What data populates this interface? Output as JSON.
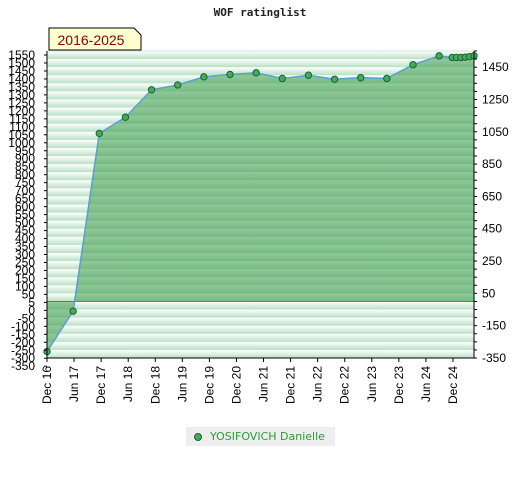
{
  "colors": {
    "line": "#5aa0d0",
    "marker_fill": "#3fae5a",
    "marker_stroke": "#1f5f2f",
    "area_fill": "#3a9a4a",
    "badge_bg": "#ffffd0",
    "badge_text": "#8a0000"
  },
  "chart_data": {
    "type": "area",
    "title": "WOF ratinglist",
    "period_badge": "2016-2025",
    "x_tick_labels": [
      "Dec 16",
      "Jun 17",
      "Dec 17",
      "Jun 18",
      "Dec 18",
      "Jun 19",
      "Dec 19",
      "Dec 20",
      "Jun 21",
      "Dec 21",
      "Jun 22",
      "Dec 22",
      "Jun 23",
      "Dec 23",
      "Jun 24",
      "Dec 24"
    ],
    "left_axis": {
      "ylim": [
        -350,
        1550
      ],
      "tick_labels": [
        "1550",
        "1500",
        "1450",
        "1400",
        "1350",
        "1300",
        "1250",
        "1200",
        "1150",
        "1100",
        "1050",
        "1000",
        "950",
        "900",
        "850",
        "800",
        "750",
        "700",
        "650",
        "600",
        "550",
        "500",
        "450",
        "400",
        "350",
        "300",
        "250",
        "200",
        "150",
        "100",
        "50",
        "5",
        "0",
        "-50",
        "-100",
        "-150",
        "-200",
        "-250",
        "-300",
        "-350"
      ]
    },
    "right_axis": {
      "ylim": [
        -350,
        1550
      ],
      "tick_labels": [
        "1450",
        "1250",
        "1050",
        "850",
        "650",
        "450",
        "250",
        "50",
        "-150",
        "-350"
      ]
    },
    "legend_position": "bottom",
    "series": [
      {
        "name": "YOSIFOVICH Danielle",
        "points": [
          {
            "x": "Dec 16",
            "y": -310
          },
          {
            "x": "Jun 17",
            "y": -60
          },
          {
            "x": "Dec 17",
            "y": 1040
          },
          {
            "x": "Jun 18",
            "y": 1140
          },
          {
            "x": "Dec 18",
            "y": 1310
          },
          {
            "x": "Jun 19",
            "y": 1340
          },
          {
            "x": "Dec 19",
            "y": 1390
          },
          {
            "x": "Jun 20",
            "y": 1405
          },
          {
            "x": "Dec 20",
            "y": 1415
          },
          {
            "x": "Jun 21",
            "y": 1380
          },
          {
            "x": "Dec 21",
            "y": 1400
          },
          {
            "x": "Jun 22",
            "y": 1375
          },
          {
            "x": "Dec 22",
            "y": 1385
          },
          {
            "x": "Jun 23",
            "y": 1380
          },
          {
            "x": "Dec 23",
            "y": 1465
          },
          {
            "x": "Jun 24",
            "y": 1520
          },
          {
            "x": "Sep 24",
            "y": 1510
          },
          {
            "x": "Oct 24",
            "y": 1510
          },
          {
            "x": "Nov 24",
            "y": 1510
          },
          {
            "x": "Dec 24",
            "y": 1512
          },
          {
            "x": "Jan 25",
            "y": 1515
          },
          {
            "x": "Feb 25",
            "y": 1520
          }
        ]
      }
    ]
  }
}
